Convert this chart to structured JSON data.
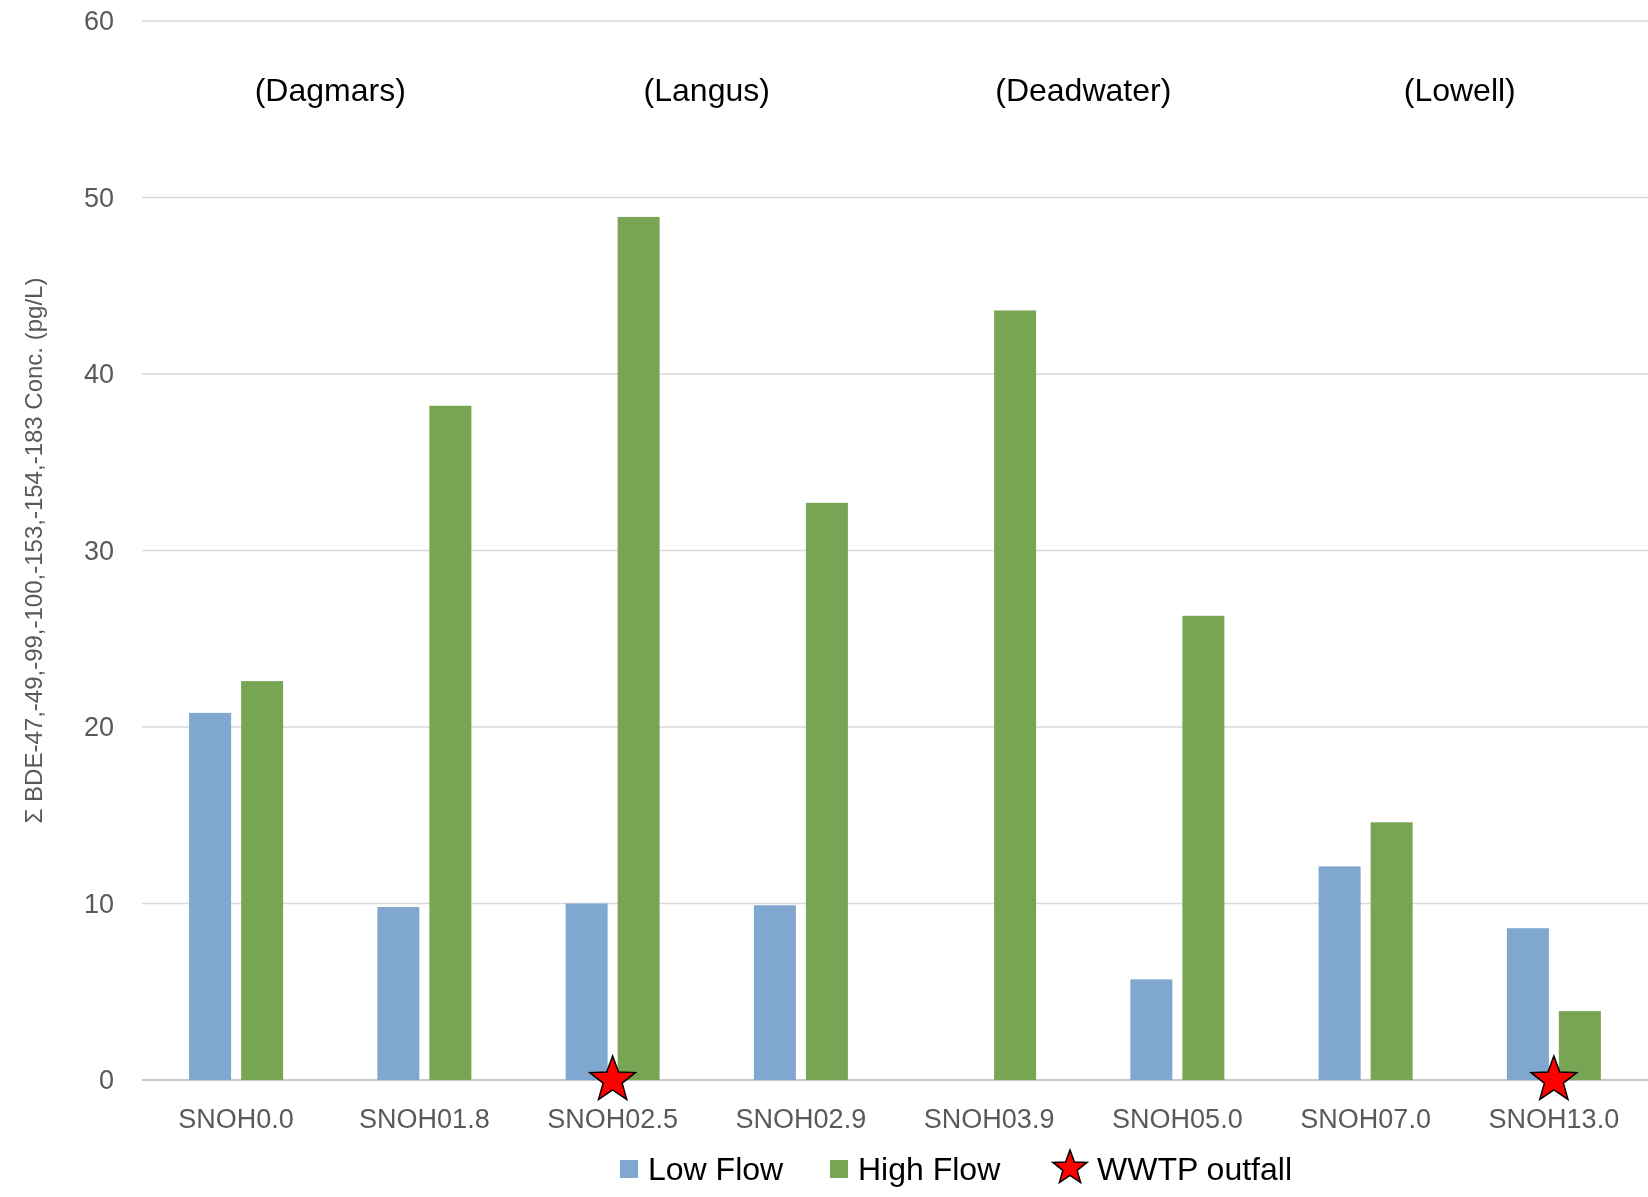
{
  "chart_data": {
    "type": "bar",
    "ylabel": "Σ BDE-47,-49,-99,-100,-153,-154,-183  Conc. (pg/L)",
    "categories": [
      "SNOH0.0",
      "SNOH01.8",
      "SNOH02.5",
      "SNOH02.9",
      "SNOH03.9",
      "SNOH05.0",
      "SNOH07.0",
      "SNOH13.0"
    ],
    "series": [
      {
        "name": "Low Flow",
        "color": "#7fa7cf",
        "values": [
          20.8,
          9.8,
          10.0,
          9.9,
          null,
          5.7,
          12.1,
          8.6
        ]
      },
      {
        "name": "High Flow",
        "color": "#78a554",
        "values": [
          22.6,
          38.2,
          48.9,
          32.7,
          43.6,
          26.3,
          14.6,
          3.9
        ]
      },
      {
        "name": "WWTP outfall",
        "type": "scatter",
        "color": "#ff0000",
        "marker": "star",
        "x": [
          "SNOH02.5",
          "SNOH13.0"
        ],
        "values": [
          0,
          0
        ]
      }
    ],
    "ylim": [
      0,
      60
    ],
    "yticks": [
      0,
      10,
      20,
      30,
      40,
      50,
      60
    ],
    "grid": "y",
    "legend": "bottom",
    "annotations": [
      "(Dagmars)",
      "(Langus)",
      "(Deadwater)",
      "(Lowell)"
    ]
  }
}
